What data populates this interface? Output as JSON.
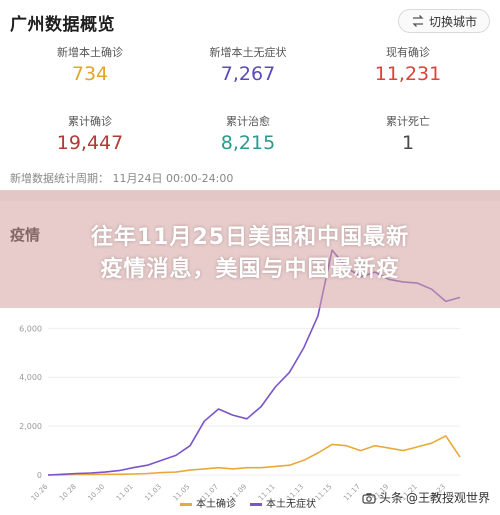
{
  "header": {
    "title": "广州数据概览",
    "switch_label": "切换城市",
    "switch_icon": "swap-icon"
  },
  "stats": [
    {
      "label": "新增本土确诊",
      "value": "734",
      "color": "#e0a62a"
    },
    {
      "label": "新增本土无症状",
      "value": "7,267",
      "color": "#5b4bb7"
    },
    {
      "label": "现有确诊",
      "value": "11,231",
      "color": "#e0413a"
    },
    {
      "label": "累计确诊",
      "value": "19,447",
      "color": "#b23a35"
    },
    {
      "label": "累计治愈",
      "value": "8,215",
      "color": "#2a9a8c"
    },
    {
      "label": "累计死亡",
      "value": "1",
      "color": "#4a4a4a"
    }
  ],
  "period": "新增数据统计周期： 11月24日 00:00-24:00",
  "chart_title": "疫情",
  "banner": {
    "line1": "往年11月25日美国和中国最新",
    "line2": "疫情消息，美国与中国最新疫"
  },
  "chart_data": {
    "type": "line",
    "y_ticks": [
      "0",
      "2,000",
      "4,000",
      "6,000"
    ],
    "ylim": [
      0,
      9000
    ],
    "x": [
      "10.26",
      "10.27",
      "10.28",
      "10.29",
      "10.30",
      "10.31",
      "11.01",
      "11.02",
      "11.03",
      "11.04",
      "11.05",
      "11.06",
      "11.07",
      "11.08",
      "11.09",
      "11.10",
      "11.11",
      "11.12",
      "11.13",
      "11.14",
      "11.15",
      "11.16",
      "11.17",
      "11.18",
      "11.19",
      "11.20",
      "11.21",
      "11.22",
      "11.23",
      "11.24"
    ],
    "x_tick_labels": [
      "10.26",
      "10.28",
      "10.30",
      "11.01",
      "11.03",
      "11.05",
      "11.07",
      "11.09",
      "11.11",
      "11.13",
      "11.15",
      "11.17",
      "11.19",
      "11.21",
      "11.23"
    ],
    "series": [
      {
        "name": "本土确诊",
        "color": "#e8a93c",
        "values": [
          0,
          10,
          20,
          20,
          30,
          30,
          40,
          60,
          100,
          120,
          200,
          250,
          300,
          250,
          300,
          300,
          350,
          400,
          600,
          900,
          1250,
          1200,
          1000,
          1200,
          1100,
          1000,
          1150,
          1300,
          1600,
          734
        ]
      },
      {
        "name": "本土无症状",
        "color": "#7a55c8",
        "values": [
          0,
          30,
          60,
          80,
          120,
          180,
          300,
          400,
          600,
          800,
          1200,
          2200,
          2700,
          2450,
          2300,
          2800,
          3600,
          4200,
          5200,
          6500,
          9200,
          8500,
          8100,
          8300,
          8000,
          7900,
          7850,
          7600,
          7100,
          7267
        ]
      }
    ]
  },
  "watermark": {
    "text": "@王教授观世界",
    "prefix": "头条",
    "icon": "camera-icon"
  }
}
